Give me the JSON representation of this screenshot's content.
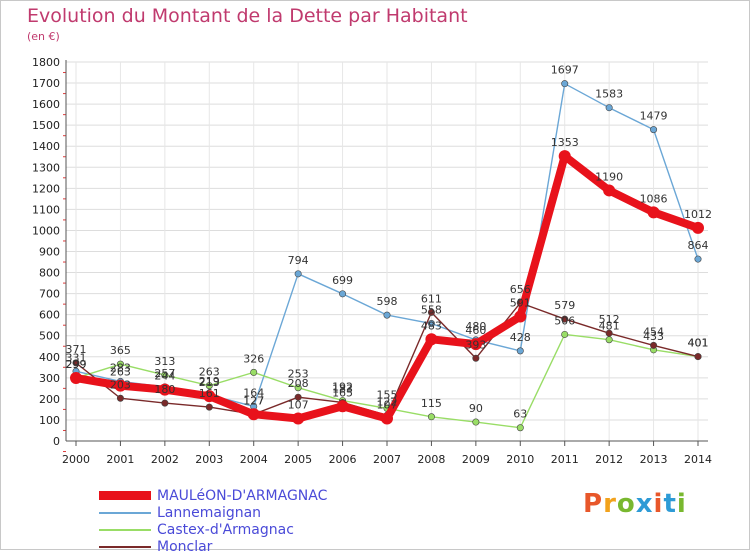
{
  "header": {
    "title": "Evolution du Montant de la Dette par Habitant",
    "subtitle": "(en €)"
  },
  "logo": {
    "text": "Proxiti",
    "colors": [
      "#e8572a",
      "#f2a21c",
      "#79b82f",
      "#2e9bd6",
      "#e8572a",
      "#2e9bd6",
      "#79b82f"
    ]
  },
  "chart_data": {
    "type": "line",
    "x": [
      "2000",
      "2001",
      "2002",
      "2003",
      "2004",
      "2005",
      "2006",
      "2007",
      "2008",
      "2009",
      "2010",
      "2011",
      "2012",
      "2013",
      "2014"
    ],
    "ylim": [
      0,
      1800
    ],
    "yticks": [
      0,
      100,
      200,
      300,
      400,
      500,
      600,
      700,
      800,
      900,
      1000,
      1100,
      1200,
      1300,
      1400,
      1500,
      1600,
      1700,
      1800
    ],
    "grid": true,
    "legend_position": "bottom-left",
    "series": [
      {
        "name": "MAULéON-D'ARMAGNAC",
        "color": "#e8121b",
        "width": 8,
        "values": [
          299,
          263,
          244,
          213,
          127,
          107,
          165,
          107,
          483,
          460,
          591,
          1353,
          1190,
          1086,
          1012
        ],
        "labels": [
          "299",
          "263",
          "244",
          "213",
          "127",
          "107",
          "165",
          "107",
          "483",
          "460",
          "591",
          "1353",
          "1190",
          "1086",
          "1012"
        ]
      },
      {
        "name": "Lannemaignan",
        "color": "#6ba7d6",
        "width": 1.4,
        "values": [
          331,
          283,
          257,
          219,
          164,
          794,
          699,
          598,
          558,
          480,
          428,
          1697,
          1583,
          1479,
          864
        ],
        "labels": [
          "331",
          "283",
          "257",
          "219",
          "164",
          "794",
          "699",
          "598",
          "558",
          "480",
          "428",
          "1697",
          "1583",
          "1479",
          "864"
        ]
      },
      {
        "name": "Castex-d'Armagnac",
        "color": "#99dd66",
        "width": 1.4,
        "values": [
          299,
          365,
          313,
          263,
          326,
          253,
          192,
          155,
          115,
          90,
          63,
          506,
          481,
          433,
          401
        ],
        "labels": [
          "299",
          "365",
          "313",
          "263",
          "326",
          "253",
          "192",
          "155",
          "115",
          "90",
          "63",
          "506",
          "481",
          "433",
          "401"
        ]
      },
      {
        "name": "Monclar",
        "color": "#7a2a2a",
        "width": 1.4,
        "values": [
          371,
          203,
          180,
          161,
          127,
          208,
          183,
          122,
          611,
          393,
          656,
          579,
          512,
          454,
          401
        ],
        "labels": [
          "371",
          "203",
          "180",
          "161",
          "127",
          "208",
          "183",
          "122",
          "611",
          "393",
          "656",
          "579",
          "512",
          "454",
          "401"
        ]
      }
    ]
  }
}
